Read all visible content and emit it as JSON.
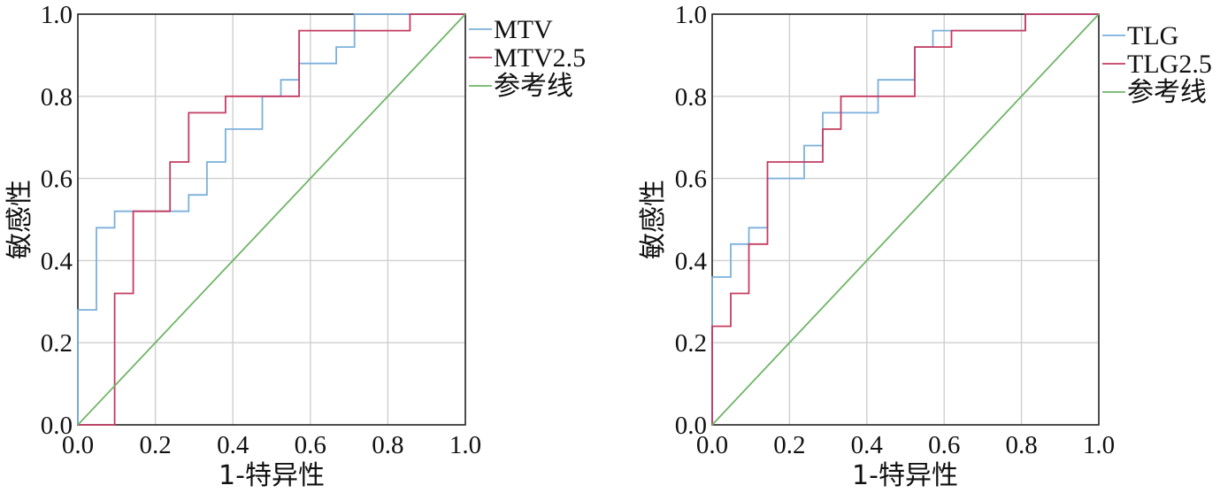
{
  "chart_data": [
    {
      "type": "line",
      "step": true,
      "xlabel": "1-特异性",
      "ylabel": "敏感性",
      "xlim": [
        0,
        1
      ],
      "ylim": [
        0,
        1
      ],
      "xticks": [
        "0.0",
        "0.2",
        "0.4",
        "0.6",
        "0.8",
        "1.0"
      ],
      "yticks": [
        "0.0",
        "0.2",
        "0.4",
        "0.6",
        "0.8",
        "1.0"
      ],
      "grid": true,
      "legend_position": "right",
      "series": [
        {
          "name": "MTV",
          "color": "#7ab0dc",
          "x": [
            0,
            0,
            0.048,
            0.048,
            0.095,
            0.095,
            0.238,
            0.238,
            0.286,
            0.286,
            0.333,
            0.333,
            0.381,
            0.381,
            0.476,
            0.476,
            0.524,
            0.524,
            0.571,
            0.571,
            0.667,
            0.667,
            0.714,
            0.714,
            0.857,
            0.857,
            1.0
          ],
          "y": [
            0,
            0.28,
            0.28,
            0.48,
            0.48,
            0.52,
            0.52,
            0.52,
            0.52,
            0.56,
            0.56,
            0.64,
            0.64,
            0.72,
            0.72,
            0.8,
            0.8,
            0.84,
            0.84,
            0.88,
            0.88,
            0.92,
            0.92,
            1.0,
            1.0,
            1.0,
            1.0
          ]
        },
        {
          "name": "MTV2.5",
          "color": "#c43c61",
          "x": [
            0,
            0.095,
            0.095,
            0.143,
            0.143,
            0.238,
            0.238,
            0.286,
            0.286,
            0.381,
            0.381,
            0.571,
            0.571,
            0.857,
            0.857,
            1.0
          ],
          "y": [
            0,
            0,
            0.32,
            0.32,
            0.52,
            0.52,
            0.64,
            0.64,
            0.76,
            0.76,
            0.8,
            0.8,
            0.96,
            0.96,
            1.0,
            1.0
          ]
        },
        {
          "name": "参考线",
          "color": "#6fb567",
          "x": [
            0,
            1
          ],
          "y": [
            0,
            1
          ]
        }
      ]
    },
    {
      "type": "line",
      "step": true,
      "xlabel": "1-特异性",
      "ylabel": "敏感性",
      "xlim": [
        0,
        1
      ],
      "ylim": [
        0,
        1
      ],
      "xticks": [
        "0.0",
        "0.2",
        "0.4",
        "0.6",
        "0.8",
        "1.0"
      ],
      "yticks": [
        "0.0",
        "0.2",
        "0.4",
        "0.6",
        "0.8",
        "1.0"
      ],
      "grid": true,
      "legend_position": "right",
      "series": [
        {
          "name": "TLG",
          "color": "#7ab0dc",
          "x": [
            0,
            0,
            0.048,
            0.048,
            0.095,
            0.095,
            0.143,
            0.143,
            0.238,
            0.238,
            0.286,
            0.286,
            0.429,
            0.429,
            0.524,
            0.524,
            0.571,
            0.571,
            0.81,
            0.81,
            1.0
          ],
          "y": [
            0,
            0.36,
            0.36,
            0.44,
            0.44,
            0.48,
            0.48,
            0.6,
            0.6,
            0.68,
            0.68,
            0.76,
            0.76,
            0.84,
            0.84,
            0.92,
            0.92,
            0.96,
            0.96,
            1.0,
            1.0
          ]
        },
        {
          "name": "TLG2.5",
          "color": "#c43c61",
          "x": [
            0,
            0,
            0.048,
            0.048,
            0.095,
            0.095,
            0.143,
            0.143,
            0.286,
            0.286,
            0.333,
            0.333,
            0.524,
            0.524,
            0.619,
            0.619,
            0.81,
            0.81,
            1.0
          ],
          "y": [
            0,
            0.24,
            0.24,
            0.32,
            0.32,
            0.44,
            0.44,
            0.64,
            0.64,
            0.72,
            0.72,
            0.8,
            0.8,
            0.92,
            0.92,
            0.96,
            0.96,
            1.0,
            1.0
          ]
        },
        {
          "name": "参考线",
          "color": "#6fb567",
          "x": [
            0,
            1
          ],
          "y": [
            0,
            1
          ]
        }
      ]
    }
  ]
}
